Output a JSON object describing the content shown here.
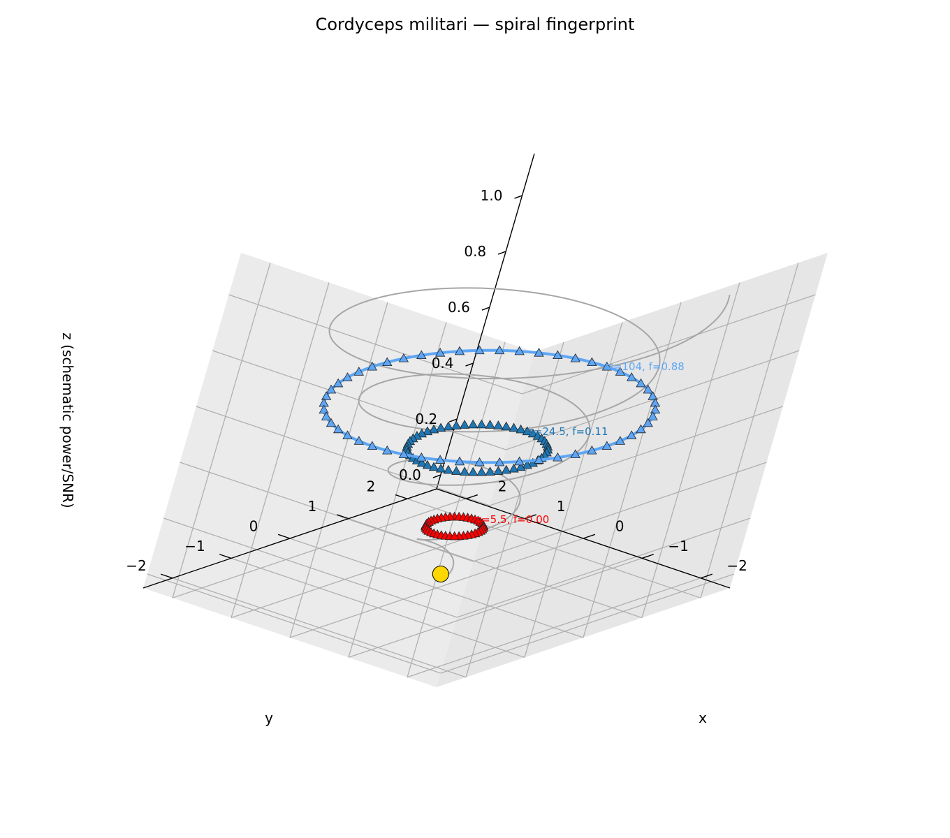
{
  "chart_data": {
    "type": "line",
    "title": "Cordyceps militari — spiral fingerprint",
    "xlabel": "x",
    "ylabel": "y",
    "zlabel": "z (schematic power/SNR)",
    "xlim": [
      -2.5,
      2.5
    ],
    "ylim": [
      -2.5,
      2.5
    ],
    "zlim": [
      -0.05,
      1.15
    ],
    "x_ticks": [
      "−2",
      "−1",
      "0",
      "1",
      "2"
    ],
    "y_ticks": [
      "−2",
      "−1",
      "0",
      "1",
      "2"
    ],
    "z_ticks": [
      "0.0",
      "0.2",
      "0.4",
      "0.6",
      "0.8",
      "1.0"
    ],
    "x_tick_values": [
      -2,
      -1,
      0,
      1,
      2
    ],
    "y_tick_values": [
      -2,
      -1,
      0,
      1,
      2
    ],
    "z_tick_values": [
      0,
      0.2,
      0.4,
      0.6,
      0.8,
      1.0
    ],
    "grid": true,
    "view": {
      "elevation_deg": 20,
      "azimuth_deg": 45
    },
    "spiral": {
      "color": "#a6a6a6",
      "turns": 4,
      "r_start": 0.1,
      "r_end": 2.5,
      "z_start": 0.0,
      "z_end": 1.0
    },
    "origin_marker": {
      "x": 0,
      "y": 0,
      "z": 0,
      "color": "#ffd700"
    },
    "rings": [
      {
        "label": "τ=5.5, f=0.00",
        "radius": 0.35,
        "z": 0.17,
        "color": "#ff0000",
        "marker": "triangle",
        "n_markers": 40,
        "draw_line": false
      },
      {
        "label": "τ=24.5, f=0.11",
        "radius": 0.85,
        "z": 0.45,
        "color": "#1f77b4",
        "marker": "triangle",
        "n_markers": 52,
        "draw_line": false
      },
      {
        "label": "τ=104, f=0.88",
        "radius": 2.0,
        "z": 0.6,
        "color": "#5ea6f5",
        "marker": "triangle",
        "n_markers": 52,
        "draw_line": true
      }
    ]
  }
}
